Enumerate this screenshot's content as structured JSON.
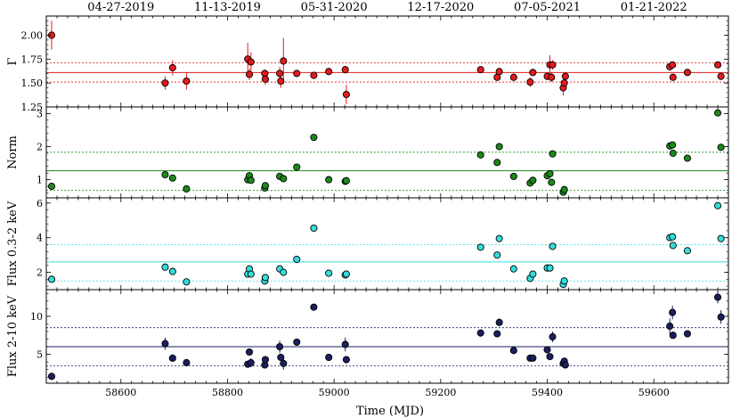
{
  "chart_data": {
    "type": "scatter",
    "xlabel": "Time (MJD)",
    "xlim": [
      58460,
      59740
    ],
    "x_ticks": [
      58600,
      58800,
      59000,
      59200,
      59400,
      59600
    ],
    "top_date_labels": [
      {
        "mjd": 58600,
        "label": "04-27-2019"
      },
      {
        "mjd": 58800,
        "label": "11-13-2019"
      },
      {
        "mjd": 59000,
        "label": "05-31-2020"
      },
      {
        "mjd": 59200,
        "label": "12-17-2020"
      },
      {
        "mjd": 59400,
        "label": "07-05-2021"
      },
      {
        "mjd": 59600,
        "label": "01-21-2022"
      }
    ],
    "panels": [
      {
        "id": "gamma",
        "ylabel": "Γ",
        "ylim": [
          1.25,
          2.2
        ],
        "yticks": [
          1.25,
          1.5,
          1.75,
          2.0
        ],
        "ytick_labels": [
          "1.25",
          "1.50",
          "1.75",
          "2.00"
        ],
        "color": "#e31a1c",
        "mean": 1.61,
        "band": [
          1.51,
          1.71
        ],
        "points": [
          {
            "x": 58470,
            "y": 2.0,
            "err": 0.15
          },
          {
            "x": 58683,
            "y": 1.5,
            "err": 0.07
          },
          {
            "x": 58697,
            "y": 1.66,
            "err": 0.08
          },
          {
            "x": 58723,
            "y": 1.52,
            "err": 0.09
          },
          {
            "x": 58838,
            "y": 1.75,
            "err": 0.17
          },
          {
            "x": 58841,
            "y": 1.59,
            "err": 0.06
          },
          {
            "x": 58844,
            "y": 1.72,
            "err": 0.1
          },
          {
            "x": 58870,
            "y": 1.6,
            "err": 0.04
          },
          {
            "x": 58871,
            "y": 1.54,
            "err": 0.06
          },
          {
            "x": 58898,
            "y": 1.6,
            "err": 0.07
          },
          {
            "x": 58900,
            "y": 1.52,
            "err": 0.07
          },
          {
            "x": 58905,
            "y": 1.73,
            "err": 0.24
          },
          {
            "x": 58930,
            "y": 1.6,
            "err": 0.03
          },
          {
            "x": 58962,
            "y": 1.58,
            "err": 0.03
          },
          {
            "x": 58990,
            "y": 1.62,
            "err": 0.03
          },
          {
            "x": 59021,
            "y": 1.64,
            "err": 0.04
          },
          {
            "x": 59023,
            "y": 1.38,
            "err": 0.1
          },
          {
            "x": 59275,
            "y": 1.64,
            "err": 0.03
          },
          {
            "x": 59306,
            "y": 1.56,
            "err": 0.04
          },
          {
            "x": 59310,
            "y": 1.62,
            "err": 0.04
          },
          {
            "x": 59337,
            "y": 1.56,
            "err": 0.03
          },
          {
            "x": 59368,
            "y": 1.51,
            "err": 0.05
          },
          {
            "x": 59373,
            "y": 1.61,
            "err": 0.03
          },
          {
            "x": 59400,
            "y": 1.57,
            "err": 0.04
          },
          {
            "x": 59405,
            "y": 1.69,
            "err": 0.1
          },
          {
            "x": 59408,
            "y": 1.56,
            "err": 0.05
          },
          {
            "x": 59410,
            "y": 1.69,
            "err": 0.05
          },
          {
            "x": 59430,
            "y": 1.45,
            "err": 0.08
          },
          {
            "x": 59432,
            "y": 1.5,
            "err": 0.06
          },
          {
            "x": 59434,
            "y": 1.57,
            "err": 0.04
          },
          {
            "x": 59630,
            "y": 1.67,
            "err": 0.04
          },
          {
            "x": 59635,
            "y": 1.69,
            "err": 0.03
          },
          {
            "x": 59636,
            "y": 1.56,
            "err": 0.03
          },
          {
            "x": 59663,
            "y": 1.61,
            "err": 0.03
          },
          {
            "x": 59720,
            "y": 1.69,
            "err": 0.03
          },
          {
            "x": 59726,
            "y": 1.57,
            "err": 0.03
          }
        ]
      },
      {
        "id": "norm",
        "ylabel": "Norm",
        "ylim": [
          0.45,
          3.2
        ],
        "yticks": [
          1,
          2,
          3
        ],
        "ytick_labels": [
          "1",
          "2",
          "3"
        ],
        "color": "#1a8a1a",
        "mean": 1.27,
        "band": [
          0.68,
          1.83
        ],
        "points": [
          {
            "x": 58470,
            "y": 0.8
          },
          {
            "x": 58683,
            "y": 1.15
          },
          {
            "x": 58697,
            "y": 1.05
          },
          {
            "x": 58723,
            "y": 0.72
          },
          {
            "x": 58838,
            "y": 1.0
          },
          {
            "x": 58841,
            "y": 1.12
          },
          {
            "x": 58844,
            "y": 0.98
          },
          {
            "x": 58870,
            "y": 0.75
          },
          {
            "x": 58871,
            "y": 0.82
          },
          {
            "x": 58898,
            "y": 1.1
          },
          {
            "x": 58905,
            "y": 1.03
          },
          {
            "x": 58930,
            "y": 1.38
          },
          {
            "x": 58962,
            "y": 2.28
          },
          {
            "x": 58990,
            "y": 1.0
          },
          {
            "x": 59021,
            "y": 0.95
          },
          {
            "x": 59023,
            "y": 0.97
          },
          {
            "x": 59275,
            "y": 1.75
          },
          {
            "x": 59306,
            "y": 1.52
          },
          {
            "x": 59310,
            "y": 2.0
          },
          {
            "x": 59337,
            "y": 1.1
          },
          {
            "x": 59368,
            "y": 0.9
          },
          {
            "x": 59373,
            "y": 0.98
          },
          {
            "x": 59400,
            "y": 1.12
          },
          {
            "x": 59405,
            "y": 1.18
          },
          {
            "x": 59408,
            "y": 0.92
          },
          {
            "x": 59410,
            "y": 1.78
          },
          {
            "x": 59430,
            "y": 0.62
          },
          {
            "x": 59432,
            "y": 0.7
          },
          {
            "x": 59630,
            "y": 2.02
          },
          {
            "x": 59635,
            "y": 2.05
          },
          {
            "x": 59636,
            "y": 1.8
          },
          {
            "x": 59663,
            "y": 1.65
          },
          {
            "x": 59720,
            "y": 3.02
          },
          {
            "x": 59726,
            "y": 1.98
          }
        ]
      },
      {
        "id": "flux_soft",
        "ylabel": "Flux 0.3-2 keV",
        "ylim": [
          1.0,
          6.3
        ],
        "yticks": [
          2,
          4,
          6
        ],
        "ytick_labels": [
          "2",
          "4",
          "6"
        ],
        "color": "#33dddd",
        "mean": 2.6,
        "band": [
          1.5,
          3.6
        ],
        "points": [
          {
            "x": 58470,
            "y": 1.6
          },
          {
            "x": 58683,
            "y": 2.3
          },
          {
            "x": 58697,
            "y": 2.05
          },
          {
            "x": 58723,
            "y": 1.45
          },
          {
            "x": 58838,
            "y": 1.9
          },
          {
            "x": 58841,
            "y": 2.2
          },
          {
            "x": 58844,
            "y": 1.9
          },
          {
            "x": 58870,
            "y": 1.5
          },
          {
            "x": 58871,
            "y": 1.7
          },
          {
            "x": 58898,
            "y": 2.2
          },
          {
            "x": 58905,
            "y": 2.0
          },
          {
            "x": 58930,
            "y": 2.75
          },
          {
            "x": 58962,
            "y": 4.55
          },
          {
            "x": 58990,
            "y": 1.95
          },
          {
            "x": 59021,
            "y": 1.85
          },
          {
            "x": 59023,
            "y": 1.9
          },
          {
            "x": 59275,
            "y": 3.45
          },
          {
            "x": 59306,
            "y": 3.0
          },
          {
            "x": 59310,
            "y": 3.95
          },
          {
            "x": 59337,
            "y": 2.2
          },
          {
            "x": 59368,
            "y": 1.65
          },
          {
            "x": 59373,
            "y": 1.9
          },
          {
            "x": 59400,
            "y": 2.25
          },
          {
            "x": 59405,
            "y": 2.25
          },
          {
            "x": 59410,
            "y": 3.5
          },
          {
            "x": 59430,
            "y": 1.3
          },
          {
            "x": 59432,
            "y": 1.5
          },
          {
            "x": 59630,
            "y": 4.0
          },
          {
            "x": 59635,
            "y": 4.05
          },
          {
            "x": 59636,
            "y": 3.55
          },
          {
            "x": 59663,
            "y": 3.25
          },
          {
            "x": 59720,
            "y": 5.85
          },
          {
            "x": 59726,
            "y": 3.95
          }
        ]
      },
      {
        "id": "flux_hard",
        "ylabel": "Flux 2-10 keV",
        "ylim": [
          1.2,
          13.5
        ],
        "yticks": [
          5,
          10
        ],
        "ytick_labels": [
          "5",
          "10"
        ],
        "color": "#1a1f5e",
        "mean": 6.0,
        "band": [
          3.5,
          8.5
        ],
        "points": [
          {
            "x": 58470,
            "y": 2.1,
            "err": 0.3
          },
          {
            "x": 58683,
            "y": 6.4,
            "err": 0.8
          },
          {
            "x": 58697,
            "y": 4.5,
            "err": 0.4
          },
          {
            "x": 58723,
            "y": 3.9,
            "err": 0.4
          },
          {
            "x": 58838,
            "y": 3.7,
            "err": 0.4
          },
          {
            "x": 58841,
            "y": 5.3,
            "err": 0.4
          },
          {
            "x": 58844,
            "y": 3.9,
            "err": 0.6
          },
          {
            "x": 58870,
            "y": 3.6,
            "err": 0.4
          },
          {
            "x": 58871,
            "y": 4.3,
            "err": 0.4
          },
          {
            "x": 58898,
            "y": 6.0,
            "err": 0.8
          },
          {
            "x": 58900,
            "y": 4.6,
            "err": 0.4
          },
          {
            "x": 58905,
            "y": 3.8,
            "err": 0.8
          },
          {
            "x": 58930,
            "y": 6.6,
            "err": 0.4
          },
          {
            "x": 58962,
            "y": 11.2,
            "err": 0.4
          },
          {
            "x": 58990,
            "y": 4.6,
            "err": 0.3
          },
          {
            "x": 59021,
            "y": 6.3,
            "err": 0.9
          },
          {
            "x": 59023,
            "y": 4.3,
            "err": 0.3
          },
          {
            "x": 59275,
            "y": 7.8,
            "err": 0.4
          },
          {
            "x": 59306,
            "y": 7.7,
            "err": 0.4
          },
          {
            "x": 59310,
            "y": 9.2,
            "err": 0.5
          },
          {
            "x": 59337,
            "y": 5.5,
            "err": 0.3
          },
          {
            "x": 59368,
            "y": 4.5,
            "err": 0.3
          },
          {
            "x": 59373,
            "y": 4.5,
            "err": 0.3
          },
          {
            "x": 59400,
            "y": 5.6,
            "err": 0.4
          },
          {
            "x": 59405,
            "y": 4.7,
            "err": 0.4
          },
          {
            "x": 59410,
            "y": 7.3,
            "err": 0.7
          },
          {
            "x": 59430,
            "y": 3.8,
            "err": 0.3
          },
          {
            "x": 59432,
            "y": 4.1,
            "err": 0.4
          },
          {
            "x": 59434,
            "y": 3.6,
            "err": 0.3
          },
          {
            "x": 59630,
            "y": 8.7,
            "err": 1.0
          },
          {
            "x": 59635,
            "y": 10.5,
            "err": 0.9
          },
          {
            "x": 59636,
            "y": 7.5,
            "err": 0.4
          },
          {
            "x": 59663,
            "y": 7.7,
            "err": 0.4
          },
          {
            "x": 59720,
            "y": 12.5,
            "err": 0.8
          },
          {
            "x": 59726,
            "y": 9.9,
            "err": 0.9
          }
        ]
      }
    ]
  }
}
